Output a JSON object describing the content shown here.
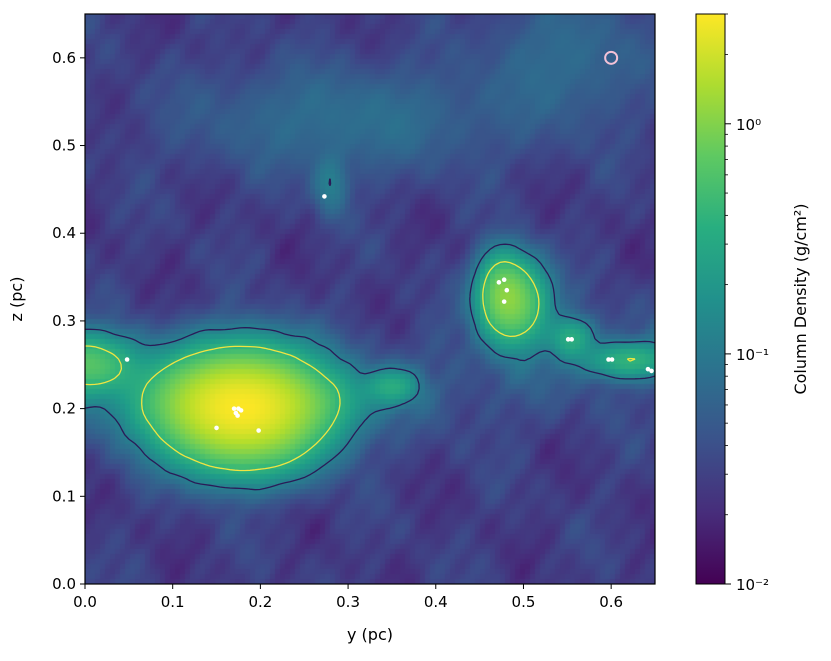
{
  "chart_data": {
    "type": "heatmap",
    "xlabel": "y (pc)",
    "ylabel": "z (pc)",
    "xlim": [
      0,
      0.65
    ],
    "ylim": [
      0,
      0.65
    ],
    "x_ticks": [
      0.0,
      0.1,
      0.2,
      0.3,
      0.4,
      0.5,
      0.6
    ],
    "x_tick_labels": [
      "0.0",
      "0.1",
      "0.2",
      "0.3",
      "0.4",
      "0.5",
      "0.6"
    ],
    "y_ticks": [
      0.0,
      0.1,
      0.2,
      0.3,
      0.4,
      0.5,
      0.6
    ],
    "y_tick_labels": [
      "0.0",
      "0.1",
      "0.2",
      "0.3",
      "0.4",
      "0.5",
      "0.6"
    ],
    "colorscale": "viridis",
    "colorbar": {
      "label": "Column Density (g/cm²)",
      "scale": "log",
      "range": [
        0.01,
        3.0
      ],
      "ticks": [
        0.01,
        0.1,
        1.0
      ],
      "tick_labels": [
        "10⁻²",
        "10⁻¹",
        "10⁰"
      ]
    },
    "filaments": [
      {
        "x": 0.0,
        "z": 0.25,
        "sx": 0.035,
        "sz": 0.02,
        "log_peak": -0.2
      },
      {
        "x": 0.18,
        "z": 0.2,
        "sx": 0.05,
        "sz": 0.035,
        "log_peak": 0.45
      },
      {
        "x": 0.12,
        "z": 0.21,
        "sx": 0.05,
        "sz": 0.025,
        "log_peak": -0.55
      },
      {
        "x": 0.26,
        "z": 0.21,
        "sx": 0.04,
        "sz": 0.02,
        "log_peak": -0.75
      },
      {
        "x": 0.35,
        "z": 0.225,
        "sx": 0.018,
        "sz": 0.012,
        "log_peak": -0.55
      },
      {
        "x": 0.49,
        "z": 0.32,
        "sx": 0.022,
        "sz": 0.028,
        "log_peak": -0.1
      },
      {
        "x": 0.475,
        "z": 0.335,
        "sx": 0.015,
        "sz": 0.025,
        "log_peak": -0.3
      },
      {
        "x": 0.555,
        "z": 0.28,
        "sx": 0.015,
        "sz": 0.014,
        "log_peak": -0.5
      },
      {
        "x": 0.62,
        "z": 0.255,
        "sx": 0.03,
        "sz": 0.012,
        "log_peak": -0.45
      },
      {
        "x": 0.28,
        "z": 0.455,
        "sx": 0.012,
        "sz": 0.022,
        "log_peak": -1.05
      },
      {
        "x": 0.3,
        "z": 0.53,
        "sx": 0.12,
        "sz": 0.04,
        "log_peak": -1.3
      },
      {
        "x": 0.55,
        "z": 0.6,
        "sx": 0.06,
        "sz": 0.05,
        "log_peak": -1.35
      }
    ],
    "contour_levels": [
      {
        "level": 0.12,
        "color": "#2a1b57"
      },
      {
        "level": 0.4,
        "color": "#f0e442"
      }
    ],
    "sink_particles": [
      {
        "x": 0.048,
        "z": 0.256
      },
      {
        "x": 0.273,
        "z": 0.442
      },
      {
        "x": 0.172,
        "z": 0.195
      },
      {
        "x": 0.175,
        "z": 0.2
      },
      {
        "x": 0.178,
        "z": 0.198
      },
      {
        "x": 0.17,
        "z": 0.2
      },
      {
        "x": 0.174,
        "z": 0.192
      },
      {
        "x": 0.15,
        "z": 0.178
      },
      {
        "x": 0.198,
        "z": 0.175
      },
      {
        "x": 0.472,
        "z": 0.344
      },
      {
        "x": 0.478,
        "z": 0.347
      },
      {
        "x": 0.481,
        "z": 0.335
      },
      {
        "x": 0.478,
        "z": 0.322
      },
      {
        "x": 0.551,
        "z": 0.279
      },
      {
        "x": 0.555,
        "z": 0.279
      },
      {
        "x": 0.597,
        "z": 0.256
      },
      {
        "x": 0.601,
        "z": 0.256
      },
      {
        "x": 0.642,
        "z": 0.245
      },
      {
        "x": 0.646,
        "z": 0.243
      }
    ],
    "marker": {
      "x": 0.6,
      "z": 0.6,
      "color": "#f4c2d7"
    }
  }
}
